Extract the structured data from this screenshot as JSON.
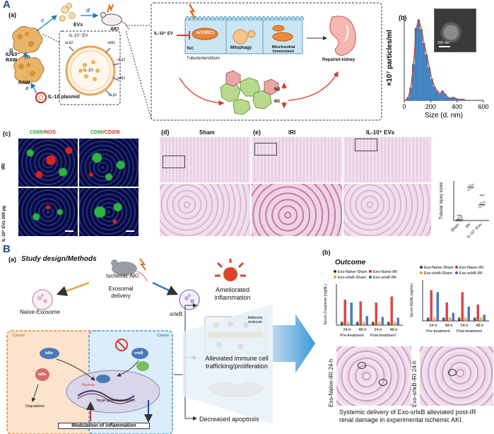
{
  "panelA": {
    "letter": "A",
    "a": {
      "sub": "(a)",
      "evs": "EVs",
      "aki": "AKI",
      "il10_raw": "IL-10⁺\nRAW",
      "raw": "RAW",
      "plasmid": "IL-10 plasmid",
      "arrows": [
        "a",
        "b",
        "c",
        "d"
      ],
      "pei": "PEI",
      "il10_ev_box": "IL-10⁺ EV",
      "il10_center": "IL-10",
      "integrins": [
        "α4β1",
        "αLβ2",
        "α4β1",
        "αLβ2",
        "αLβ2"
      ],
      "il10_ev_left": "IL-10⁺ EV",
      "mtorc1": "mTORC1",
      "tec": "TEC",
      "mitophagy": "Mitophagy",
      "mito": "Mitochondrial\nhomeostasis",
      "tubulo": "Tubulointerstitium",
      "repaired": "Repaired kidney",
      "m1": "M1",
      "m2": "M2",
      "m2_label": "M2",
      "m1_label": "M1"
    },
    "b": {
      "sub": "(b)",
      "scale": "200 nm"
    },
    "c": {
      "sub": "(c)",
      "col1_a": "CD68/",
      "col1_b": "iNOS",
      "col2_a": "CD68/",
      "col2_b": "CD206",
      "row1": "IRI",
      "row2": "IL-10⁺ EVs 200 μg"
    },
    "d": {
      "sub": "(d)",
      "sham": "Sham"
    },
    "e": {
      "sub": "(e)",
      "iri": "IRI",
      "il10": "IL-10⁺ EVs"
    },
    "score": {
      "ylabel": "Tubular injury score",
      "cats": [
        "Sham",
        "IRI",
        "IL-10⁺ EVs"
      ],
      "stars_sham": "***",
      "stars_il10": "***"
    }
  },
  "chart_data": [
    {
      "type": "bar",
      "x": [
        20,
        40,
        60,
        80,
        100,
        120,
        140,
        160,
        180,
        200,
        220,
        240,
        260,
        280,
        300,
        320,
        340,
        360,
        380,
        400,
        420,
        440,
        460,
        480
      ],
      "values": [
        0,
        0.3,
        1.2,
        3.4,
        6.8,
        7.6,
        6.7,
        5.4,
        4.3,
        3.1,
        2.0,
        1.3,
        0.9,
        0.6,
        0.9,
        0.6,
        0.3,
        0.2,
        0.3,
        0.2,
        0.1,
        0.1,
        0.1,
        0
      ],
      "xlabel": "Size (d. nm)",
      "ylabel": "×10⁷ particles/ml",
      "xlim": [
        0,
        600
      ],
      "xticks": [
        "0",
        "200",
        "400",
        "600"
      ]
    },
    {
      "type": "scatter",
      "categories": [
        "Sham",
        "IRI",
        "IL-10⁺ EVs"
      ],
      "values": [
        0.1,
        4.2,
        2.0
      ],
      "ylabel": "Tubular injury score"
    }
  ],
  "panelB": {
    "letter": "B",
    "a_sub": "(a)",
    "design": "Study design/Methods",
    "aki": "Ischemic AKI",
    "exosomal": "Exosomal\ndelivery",
    "naive": "Naïve-Exosome",
    "srikb": "srIκB",
    "cytosol1": "Cytosol",
    "cytosol2": "Cytosol",
    "ikba": "IκBα",
    "ikba2": "IκBα",
    "srikb2": "srIκB",
    "degradation": "Degradation",
    "nucleus": "Nucleus",
    "target": "Target gene transcription",
    "modulation": "Modulation of inflammation",
    "amel": "Ameliorated\ninflammation",
    "adhesion": "Adhesion\nmolecule",
    "alleviated": "Alleviated immune cell\ntrafficking/proliferation",
    "apoptosis": "Decreased apoptosis",
    "b_sub": "(b)",
    "outcome": "Outcome",
    "legend1": [
      "Exo-Naive-Sham",
      "Exo-Naive-IRI",
      "Exo-srIκB-Sham",
      "Exo-srIκB-IRI"
    ],
    "legend2": [
      "Exo-Naive-Sham",
      "Exo-Naive-IRI",
      "Exo-srIκB-Sham",
      "Exo-srIκB-IRI"
    ],
    "ylab1": "Serum Creatinine (mg/dL)",
    "ylab2": "Serum NGAL (ng/mL)",
    "xt1": [
      "24-h",
      "48-h",
      "24-h",
      "48-h"
    ],
    "grp1": [
      "Pre-treatment",
      "Post-treatment"
    ],
    "xt2": [
      "24-h",
      "48-h",
      "24-h",
      "48-h"
    ],
    "grp2": [
      "Pre-treatment",
      "Post-treatment"
    ],
    "histo1": "Exo-Naïve-IRI 24-h",
    "histo2": "Exo-srIκB-IRI 24-h",
    "conclusion": "Systemic delivery of Exo-srIκB alleviated post-IR\nrenal damage in experimental ischemic AKI."
  }
}
